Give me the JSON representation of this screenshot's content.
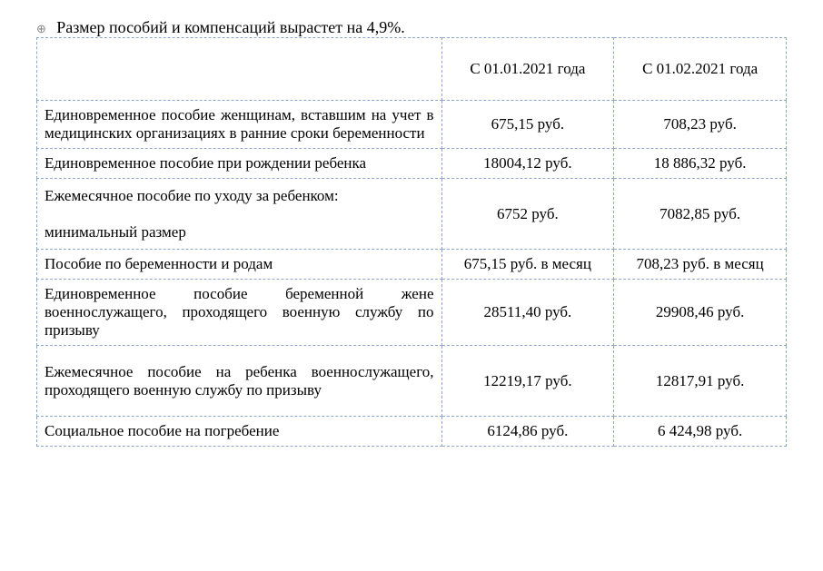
{
  "title": "Размер пособий и компенсаций вырастет на 4,9%.",
  "columns": [
    "",
    "С 01.01.2021 года",
    "С 01.02.2021 года"
  ],
  "rows": [
    {
      "desc": "Единовременное пособие женщинам, вставшим на учет в медицинских организациях в ранние сроки беременности",
      "v1": "675,15 руб.",
      "v2": "708,23 руб.",
      "tall": false
    },
    {
      "desc": "Единовременное пособие при рождении ребенка",
      "v1": "18004,12 руб.",
      "v2": "18 886,32 руб.",
      "tall": false
    },
    {
      "desc": "Ежемесячное пособие по уходу за ребенком:\n\nминимальный размер",
      "v1": "6752 руб.",
      "v2": "7082,85 руб.",
      "tall": true
    },
    {
      "desc": "Пособие по беременности и родам",
      "v1": "675,15 руб. в месяц",
      "v2": "708,23 руб. в месяц",
      "tall": false
    },
    {
      "desc": "Единовременное пособие беременной жене военнослужащего, проходящего военную службу по призыву",
      "v1": "28511,40 руб.",
      "v2": "29908,46 руб.",
      "tall": false
    },
    {
      "desc": "Ежемесячное пособие на ребенка военнослужащего, проходящего военную службу по призыву",
      "v1": "12219,17 руб.",
      "v2": "12817,91 руб.",
      "tall": true
    },
    {
      "desc": "Социальное пособие на погребение",
      "v1": "6124,86 руб.",
      "v2": "6 424,98 руб.",
      "tall": false
    }
  ]
}
